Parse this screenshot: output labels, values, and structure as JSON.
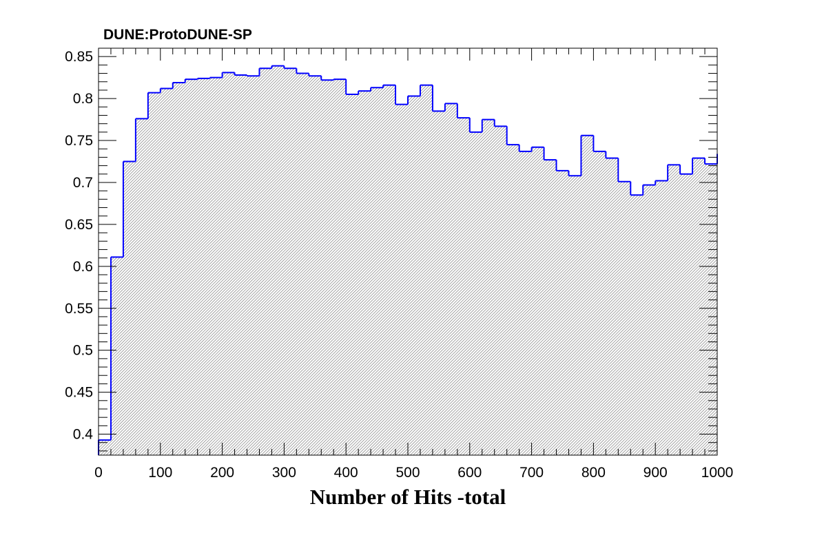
{
  "chart_data": {
    "type": "bar",
    "subtype": "step-histogram",
    "title": "DUNE:ProtoDUNE-SP",
    "xlabel": "Number of Hits -total",
    "ylabel": "",
    "xlim": [
      0,
      1000
    ],
    "ylim": [
      0.375,
      0.86
    ],
    "x_ticks": [
      0,
      100,
      200,
      300,
      400,
      500,
      600,
      700,
      800,
      900,
      1000
    ],
    "x_tick_labels": [
      "0",
      "100",
      "200",
      "300",
      "400",
      "500",
      "600",
      "700",
      "800",
      "900",
      "1000"
    ],
    "y_ticks": [
      0.4,
      0.45,
      0.5,
      0.55,
      0.6,
      0.65,
      0.7,
      0.75,
      0.8,
      0.85
    ],
    "y_tick_labels": [
      "0.4",
      "0.45",
      "0.5",
      "0.55",
      "0.6",
      "0.65",
      "0.7",
      "0.75",
      "0.8",
      "0.85"
    ],
    "bin_width": 20,
    "bin_edges_start": 0,
    "values": [
      0.393,
      0.611,
      0.725,
      0.776,
      0.807,
      0.812,
      0.819,
      0.823,
      0.824,
      0.825,
      0.831,
      0.828,
      0.827,
      0.836,
      0.839,
      0.836,
      0.83,
      0.827,
      0.822,
      0.823,
      0.805,
      0.809,
      0.813,
      0.816,
      0.793,
      0.803,
      0.816,
      0.785,
      0.794,
      0.777,
      0.76,
      0.775,
      0.767,
      0.745,
      0.737,
      0.742,
      0.727,
      0.714,
      0.708,
      0.756,
      0.737,
      0.729,
      0.701,
      0.685,
      0.697,
      0.702,
      0.721,
      0.71,
      0.729,
      0.722,
      0.734
    ],
    "grid": false,
    "legend": "none",
    "colors": {
      "line": "#0000ff",
      "fill_hatch": "#999999",
      "axis": "#000000"
    }
  }
}
